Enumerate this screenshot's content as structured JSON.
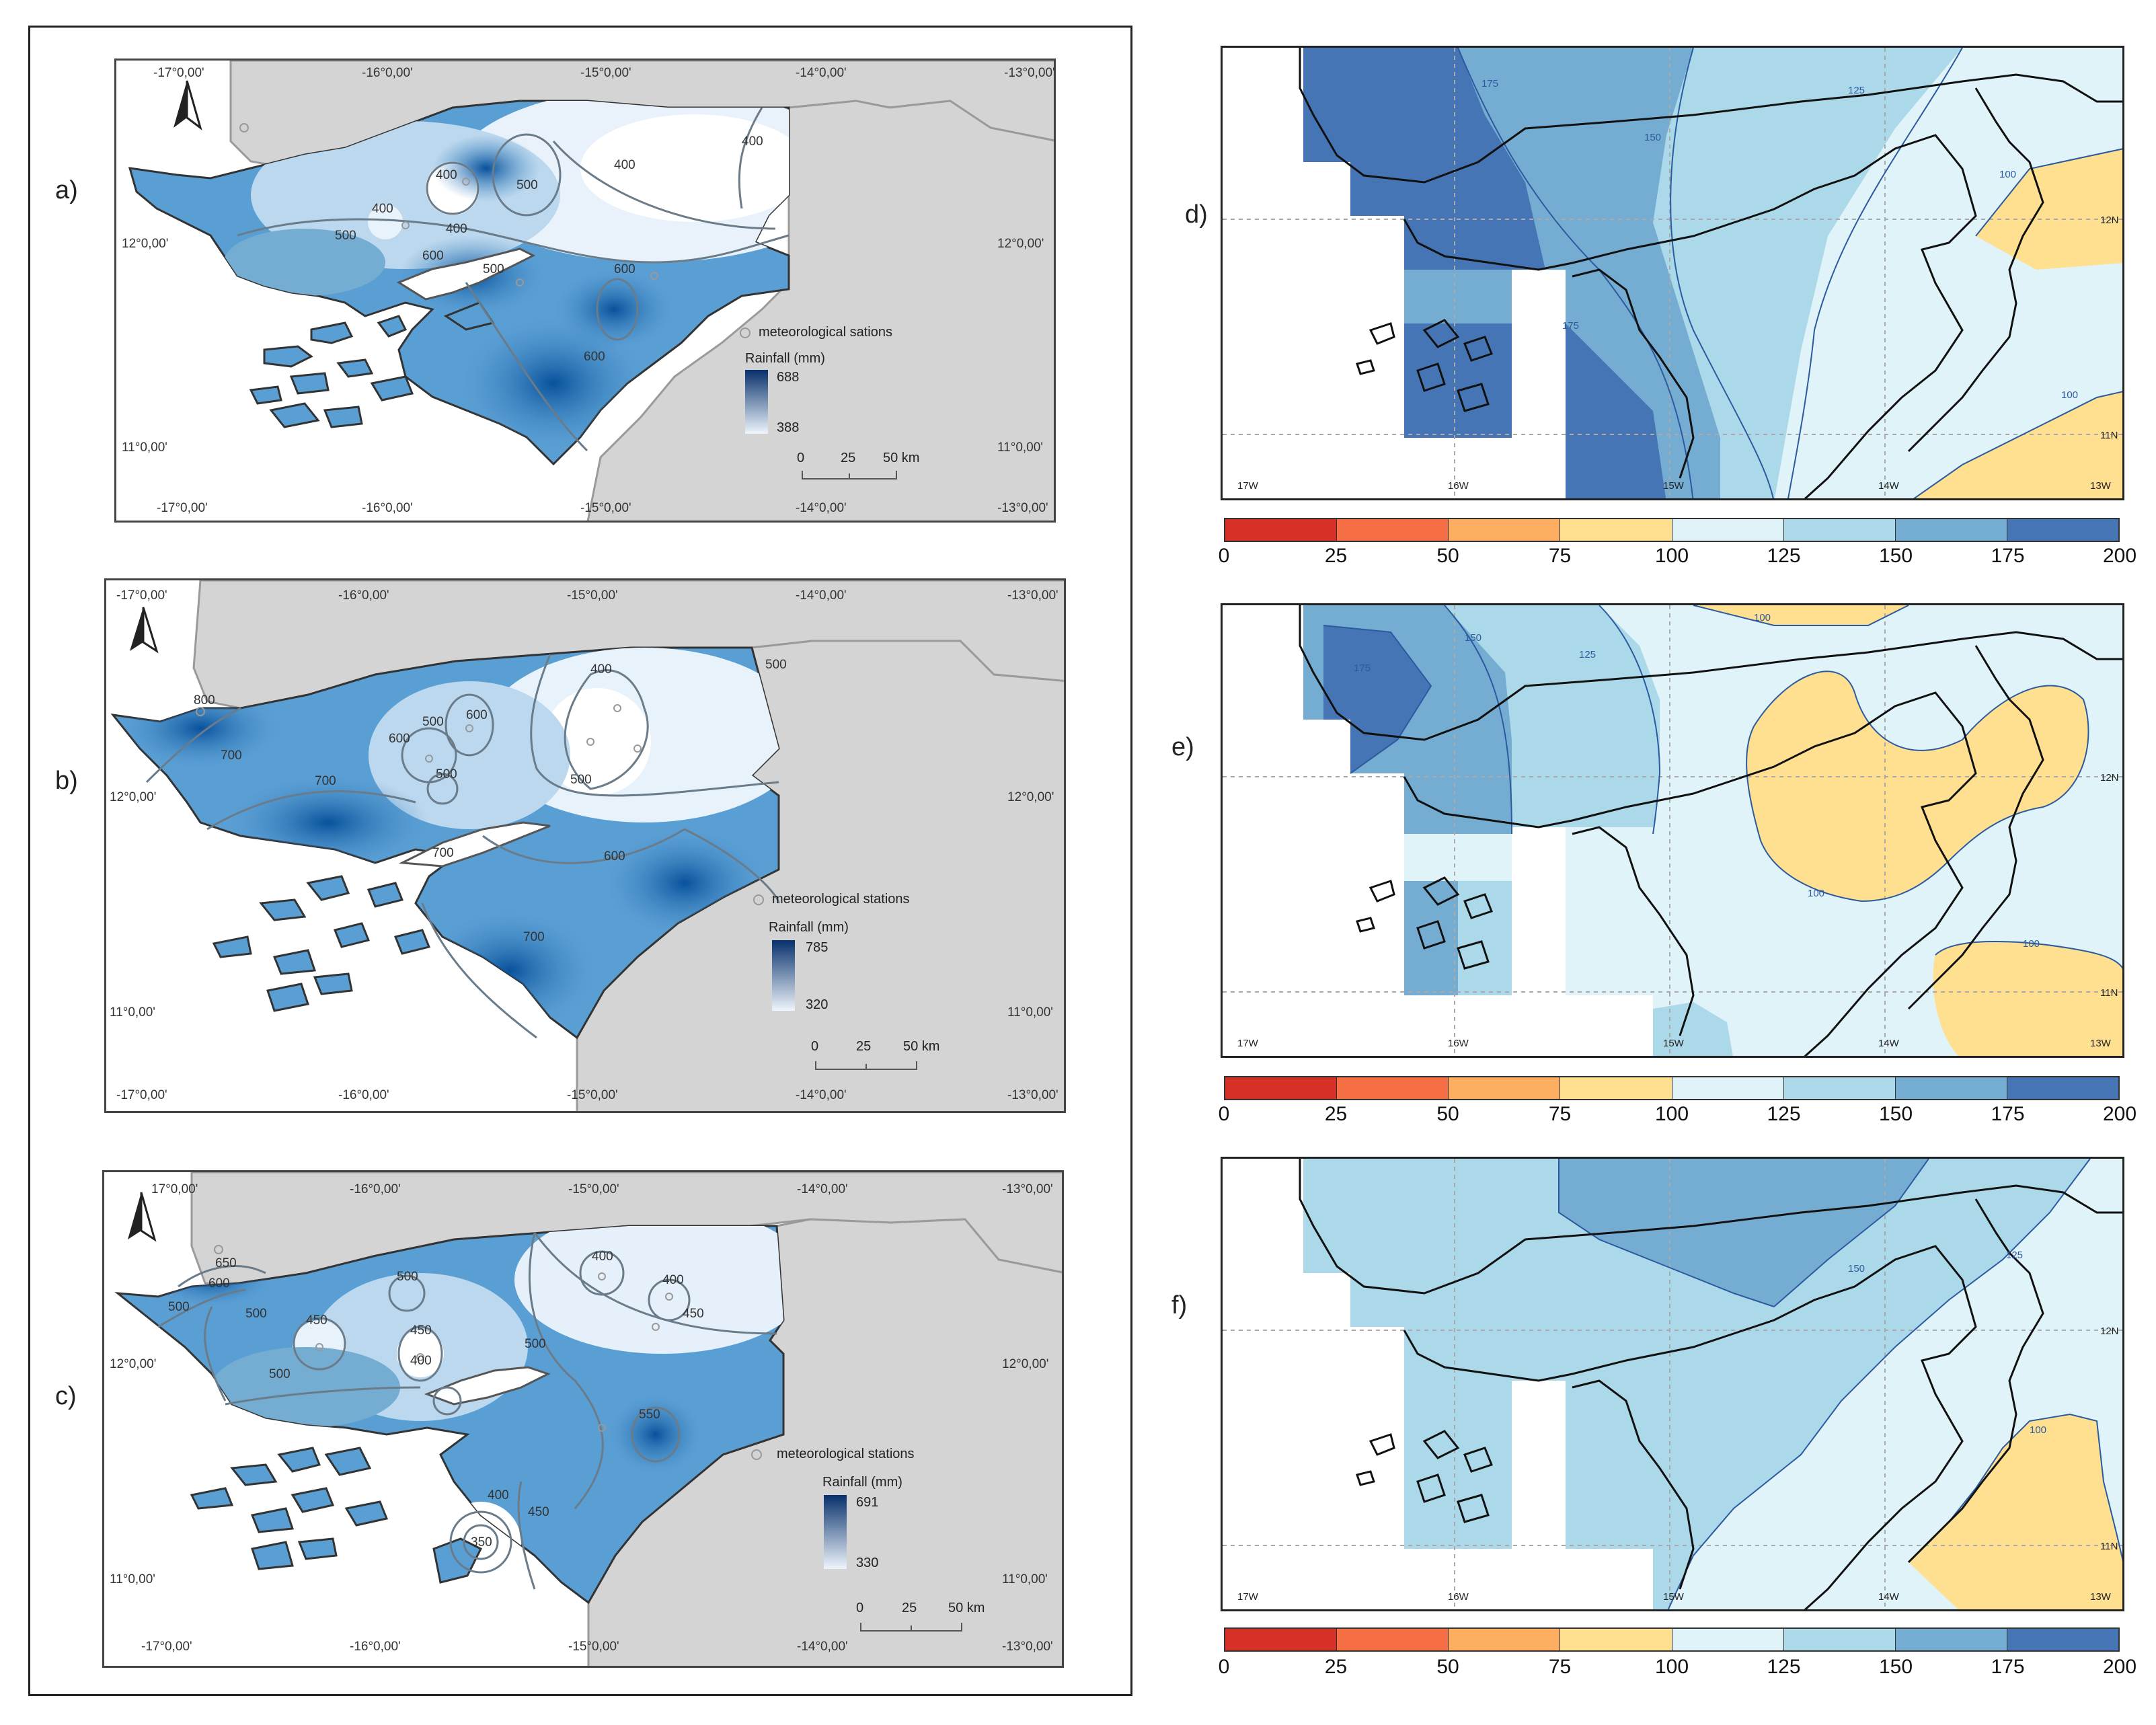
{
  "left_maps": [
    {
      "label": "a)",
      "stations_label": "meteorological sations",
      "legend_title": "Rainfall (mm)",
      "legend_max": "688",
      "legend_min": "388",
      "scale_labels": [
        "0",
        "25",
        "50 km"
      ],
      "top_ticks": [
        "-17°0,00'",
        "-16°0,00'",
        "-15°0,00'",
        "-14°0,00'",
        "-13°0,00'"
      ],
      "bottom_ticks": [
        "-17°0,00'",
        "-16°0,00'",
        "-15°0,00'",
        "-14°0,00'",
        "-13°0,00'"
      ],
      "lat_ticks": [
        "12°0,00'",
        "11°0,00'"
      ],
      "contour_labels": [
        "400",
        "400",
        "500",
        "400",
        "400",
        "500",
        "400",
        "500",
        "600",
        "600",
        "600"
      ]
    },
    {
      "label": "b)",
      "stations_label": "meteorological stations",
      "legend_title": "Rainfall (mm)",
      "legend_max": "785",
      "legend_min": "320",
      "scale_labels": [
        "0",
        "25",
        "50 km"
      ],
      "top_ticks": [
        "-17°0,00'",
        "-16°0,00'",
        "-15°0,00'",
        "-14°0,00'",
        "-13°0,00'"
      ],
      "bottom_ticks": [
        "-17°0,00'",
        "-16°0,00'",
        "-15°0,00'",
        "-14°0,00'",
        "-13°0,00'"
      ],
      "lat_ticks": [
        "12°0,00'",
        "11°0,00'"
      ],
      "contour_labels": [
        "800",
        "700",
        "600",
        "500",
        "600",
        "500",
        "400",
        "500",
        "500",
        "700",
        "700",
        "600",
        "700"
      ]
    },
    {
      "label": "c)",
      "stations_label": "meteorological stations",
      "legend_title": "Rainfall (mm)",
      "legend_max": "691",
      "legend_min": "330",
      "scale_labels": [
        "0",
        "25",
        "50 km"
      ],
      "top_ticks": [
        "17°0,00'",
        "-16°0,00'",
        "-15°0,00'",
        "-14°0,00'",
        "-13°0,00'"
      ],
      "bottom_ticks": [
        "-17°0,00'",
        "-16°0,00'",
        "-15°0,00'",
        "-14°0,00'",
        "-13°0,00'"
      ],
      "lat_ticks": [
        "12°0,00'",
        "11°0,00'"
      ],
      "contour_labels": [
        "650",
        "600",
        "500",
        "500",
        "450",
        "500",
        "450",
        "400",
        "500",
        "400",
        "400",
        "450",
        "500",
        "550",
        "400",
        "450",
        "350"
      ]
    }
  ],
  "right_maps": [
    {
      "label": "d)",
      "lon_ticks": [
        "17W",
        "16W",
        "15W",
        "14W",
        "13W"
      ],
      "lat_ticks": [
        "12N",
        "11N"
      ],
      "contour_labels": [
        "175",
        "150",
        "125",
        "100",
        "100",
        "175"
      ]
    },
    {
      "label": "e)",
      "lon_ticks": [
        "17W",
        "16W",
        "15W",
        "14W",
        "13W"
      ],
      "lat_ticks": [
        "12N",
        "11N"
      ],
      "contour_labels": [
        "150",
        "175",
        "125",
        "100",
        "100",
        "100"
      ]
    },
    {
      "label": "f)",
      "lon_ticks": [
        "17W",
        "16W",
        "15W",
        "14W",
        "13W"
      ],
      "lat_ticks": [
        "12N",
        "11N"
      ],
      "contour_labels": [
        "150",
        "125",
        "100"
      ]
    }
  ],
  "colorbar": {
    "ticks": [
      "0",
      "25",
      "50",
      "75",
      "100",
      "125",
      "150",
      "175",
      "200"
    ],
    "colors": [
      "#d73027",
      "#f46d43",
      "#fdae61",
      "#fee090",
      "#e0f3f8",
      "#abd9e9",
      "#74add1",
      "#4575b4"
    ]
  }
}
